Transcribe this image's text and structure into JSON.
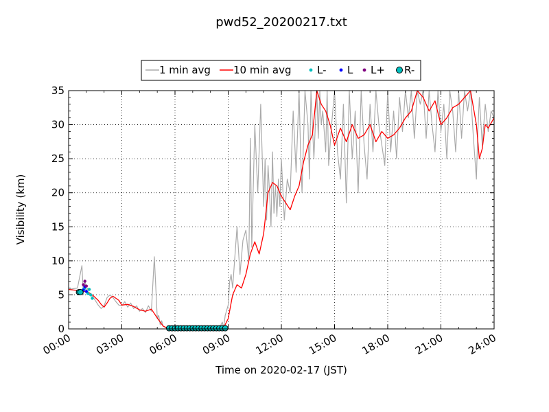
{
  "chart_data": {
    "type": "line",
    "title": "pwd52_20200217.txt",
    "xlabel": "Time on 2020-02-17 (JST)",
    "ylabel": "Visibility (km)",
    "xlim": [
      "00:00",
      "24:00"
    ],
    "ylim": [
      0,
      35
    ],
    "x_ticks": [
      "00:00",
      "03:00",
      "06:00",
      "09:00",
      "12:00",
      "15:00",
      "18:00",
      "21:00",
      "24:00"
    ],
    "y_ticks": [
      "0",
      "5",
      "10",
      "15",
      "20",
      "25",
      "30",
      "35"
    ],
    "grid": true,
    "legend_position": "top-center",
    "legend": [
      "1 min avg",
      "10 min avg",
      "L-",
      "L",
      "L+",
      "R-"
    ],
    "colors": {
      "1 min avg": "#aaaaaa",
      "10 min avg": "#ff0000",
      "L-": "#00bfbf",
      "L": "#0000ff",
      "L+": "#800080",
      "R-": "#00bfbf"
    },
    "series": [
      {
        "name": "10 min avg",
        "style": "line",
        "x": [
          "00:00",
          "00:20",
          "00:40",
          "00:50",
          "01:00",
          "01:10",
          "01:20",
          "01:30",
          "01:40",
          "01:50",
          "02:00",
          "02:10",
          "02:20",
          "02:30",
          "02:40",
          "02:50",
          "03:00",
          "03:20",
          "03:40",
          "04:00",
          "04:20",
          "04:40",
          "05:00",
          "05:10",
          "05:20",
          "05:30",
          "05:40",
          "06:00",
          "07:00",
          "08:00",
          "08:30",
          "08:45",
          "09:00",
          "09:15",
          "09:30",
          "09:45",
          "10:00",
          "10:15",
          "10:30",
          "10:45",
          "11:00",
          "11:15",
          "11:30",
          "11:45",
          "12:00",
          "12:15",
          "12:30",
          "12:45",
          "13:00",
          "13:15",
          "13:30",
          "13:45",
          "14:00",
          "14:15",
          "14:30",
          "14:45",
          "15:00",
          "15:20",
          "15:40",
          "16:00",
          "16:20",
          "16:40",
          "17:00",
          "17:20",
          "17:40",
          "18:00",
          "18:20",
          "18:40",
          "19:00",
          "19:20",
          "19:40",
          "20:00",
          "20:20",
          "20:40",
          "21:00",
          "21:20",
          "21:40",
          "22:00",
          "22:20",
          "22:40",
          "23:00",
          "23:10",
          "23:20",
          "23:30",
          "23:40",
          "24:00"
        ],
        "values": [
          5.8,
          5.7,
          5.6,
          5.5,
          5.5,
          5.3,
          5.0,
          4.6,
          4.2,
          3.6,
          3.2,
          3.8,
          4.5,
          4.8,
          4.5,
          4.2,
          3.5,
          3.6,
          3.3,
          2.8,
          2.6,
          2.9,
          1.6,
          1.0,
          0.4,
          0.2,
          0.1,
          0.1,
          0.1,
          0.1,
          0.1,
          0.2,
          1.5,
          5.0,
          6.5,
          6.0,
          8.0,
          11.0,
          12.8,
          11.0,
          14.0,
          20.0,
          21.5,
          21.0,
          19.5,
          18.5,
          17.5,
          19.5,
          21.0,
          24.5,
          27.0,
          28.5,
          35.0,
          33.0,
          32.0,
          30.0,
          27.0,
          29.5,
          27.5,
          30.0,
          28.0,
          28.5,
          30.0,
          27.5,
          29.0,
          28.0,
          28.5,
          29.5,
          31.0,
          32.0,
          35.0,
          34.0,
          32.0,
          33.5,
          30.0,
          31.0,
          32.5,
          33.0,
          34.0,
          35.0,
          30.0,
          25.0,
          26.5,
          30.0,
          29.5,
          31.0
        ]
      },
      {
        "name": "1 min avg",
        "style": "line",
        "x": [
          "00:00",
          "00:30",
          "00:45",
          "00:50",
          "00:55",
          "01:00",
          "01:05",
          "01:10",
          "01:20",
          "01:30",
          "01:40",
          "01:50",
          "02:00",
          "02:10",
          "02:20",
          "02:30",
          "02:40",
          "02:50",
          "03:00",
          "03:10",
          "03:20",
          "03:30",
          "03:40",
          "03:50",
          "04:00",
          "04:10",
          "04:20",
          "04:30",
          "04:40",
          "04:50",
          "05:00",
          "05:05",
          "05:10",
          "05:15",
          "05:20",
          "05:30",
          "05:40",
          "06:00",
          "07:00",
          "08:00",
          "08:30",
          "08:40",
          "08:45",
          "08:50",
          "09:00",
          "09:05",
          "09:10",
          "09:15",
          "09:20",
          "09:30",
          "09:40",
          "09:50",
          "10:00",
          "10:10",
          "10:15",
          "10:20",
          "10:30",
          "10:40",
          "10:50",
          "11:00",
          "11:05",
          "11:10",
          "11:15",
          "11:20",
          "11:25",
          "11:30",
          "11:35",
          "11:40",
          "11:45",
          "11:50",
          "11:55",
          "12:00",
          "12:10",
          "12:20",
          "12:30",
          "12:40",
          "12:50",
          "13:00",
          "13:05",
          "13:10",
          "13:20",
          "13:30",
          "13:35",
          "13:40",
          "13:50",
          "14:00",
          "14:05",
          "14:10",
          "14:15",
          "14:20",
          "14:30",
          "14:35",
          "14:40",
          "14:50",
          "15:00",
          "15:10",
          "15:20",
          "15:30",
          "15:40",
          "15:50",
          "16:00",
          "16:10",
          "16:20",
          "16:30",
          "16:40",
          "16:50",
          "17:00",
          "17:10",
          "17:20",
          "17:30",
          "17:40",
          "17:50",
          "18:00",
          "18:10",
          "18:20",
          "18:30",
          "18:40",
          "18:50",
          "19:00",
          "19:10",
          "19:20",
          "19:30",
          "19:40",
          "19:50",
          "20:00",
          "20:10",
          "20:20",
          "20:30",
          "20:40",
          "20:50",
          "21:00",
          "21:10",
          "21:20",
          "21:30",
          "21:40",
          "21:50",
          "22:00",
          "22:10",
          "22:20",
          "22:30",
          "22:40",
          "22:50",
          "23:00",
          "23:05",
          "23:10",
          "23:20",
          "23:30",
          "23:40",
          "23:50",
          "24:00"
        ],
        "values": [
          5.8,
          6.0,
          9.3,
          5.0,
          7.2,
          5.5,
          6.0,
          5.0,
          4.8,
          4.2,
          3.5,
          3.0,
          3.4,
          4.6,
          5.0,
          4.6,
          4.0,
          3.5,
          3.4,
          4.0,
          3.2,
          3.8,
          3.0,
          3.4,
          2.6,
          3.0,
          2.4,
          3.4,
          2.6,
          10.6,
          1.5,
          2.0,
          0.6,
          1.2,
          0.4,
          0.2,
          0.1,
          0.1,
          0.1,
          0.1,
          0.1,
          1.0,
          0.2,
          2.0,
          3.5,
          7.0,
          8.0,
          6.0,
          9.0,
          15.0,
          8.0,
          13.0,
          14.5,
          10.0,
          28.0,
          12.0,
          30.0,
          20.0,
          33.0,
          18.0,
          25.0,
          16.0,
          24.0,
          20.0,
          15.0,
          26.0,
          17.0,
          21.0,
          16.5,
          22.0,
          18.0,
          25.0,
          16.0,
          22.0,
          20.0,
          32.0,
          23.0,
          35.0,
          26.0,
          20.0,
          35.0,
          30.0,
          22.0,
          35.0,
          25.0,
          35.0,
          28.0,
          35.0,
          30.0,
          32.0,
          26.0,
          35.0,
          24.0,
          30.0,
          35.0,
          26.0,
          22.0,
          33.0,
          18.5,
          35.0,
          25.0,
          32.0,
          20.0,
          35.0,
          27.0,
          22.0,
          33.0,
          26.0,
          35.0,
          30.0,
          27.0,
          24.0,
          35.0,
          26.0,
          32.0,
          25.0,
          34.0,
          29.0,
          35.0,
          31.0,
          35.0,
          28.0,
          35.0,
          33.0,
          35.0,
          28.0,
          35.0,
          30.0,
          26.0,
          35.0,
          29.0,
          33.0,
          25.0,
          35.0,
          32.0,
          26.0,
          35.0,
          28.0,
          35.0,
          32.0,
          35.0,
          28.0,
          22.0,
          29.0,
          34.0,
          27.0,
          33.0,
          29.0,
          32.0,
          31.0
        ]
      },
      {
        "name": "L-",
        "style": "points",
        "x": [
          "00:45",
          "00:50",
          "00:55",
          "01:00",
          "01:05",
          "01:10",
          "01:15",
          "01:20"
        ],
        "values": [
          5.3,
          5.8,
          6.0,
          5.5,
          5.2,
          5.8,
          5.0,
          4.5
        ]
      },
      {
        "name": "L",
        "style": "points",
        "x": [
          "00:50",
          "00:55",
          "01:00"
        ],
        "values": [
          5.7,
          6.2,
          5.5
        ]
      },
      {
        "name": "L+",
        "style": "points",
        "x": [
          "00:50",
          "00:55",
          "01:00"
        ],
        "values": [
          6.5,
          7.0,
          6.3
        ]
      },
      {
        "name": "R-",
        "style": "points",
        "x": [
          "00:35",
          "00:40",
          "05:40",
          "05:50",
          "06:00",
          "06:10",
          "06:20",
          "06:30",
          "06:40",
          "06:50",
          "07:00",
          "07:10",
          "07:20",
          "07:30",
          "07:40",
          "07:50",
          "08:00",
          "08:10",
          "08:20",
          "08:30",
          "08:40",
          "08:50"
        ],
        "values": [
          5.4,
          5.4,
          0.1,
          0.1,
          0.1,
          0.1,
          0.1,
          0.1,
          0.1,
          0.1,
          0.1,
          0.1,
          0.1,
          0.1,
          0.1,
          0.1,
          0.1,
          0.1,
          0.1,
          0.1,
          0.1,
          0.1
        ]
      }
    ]
  }
}
